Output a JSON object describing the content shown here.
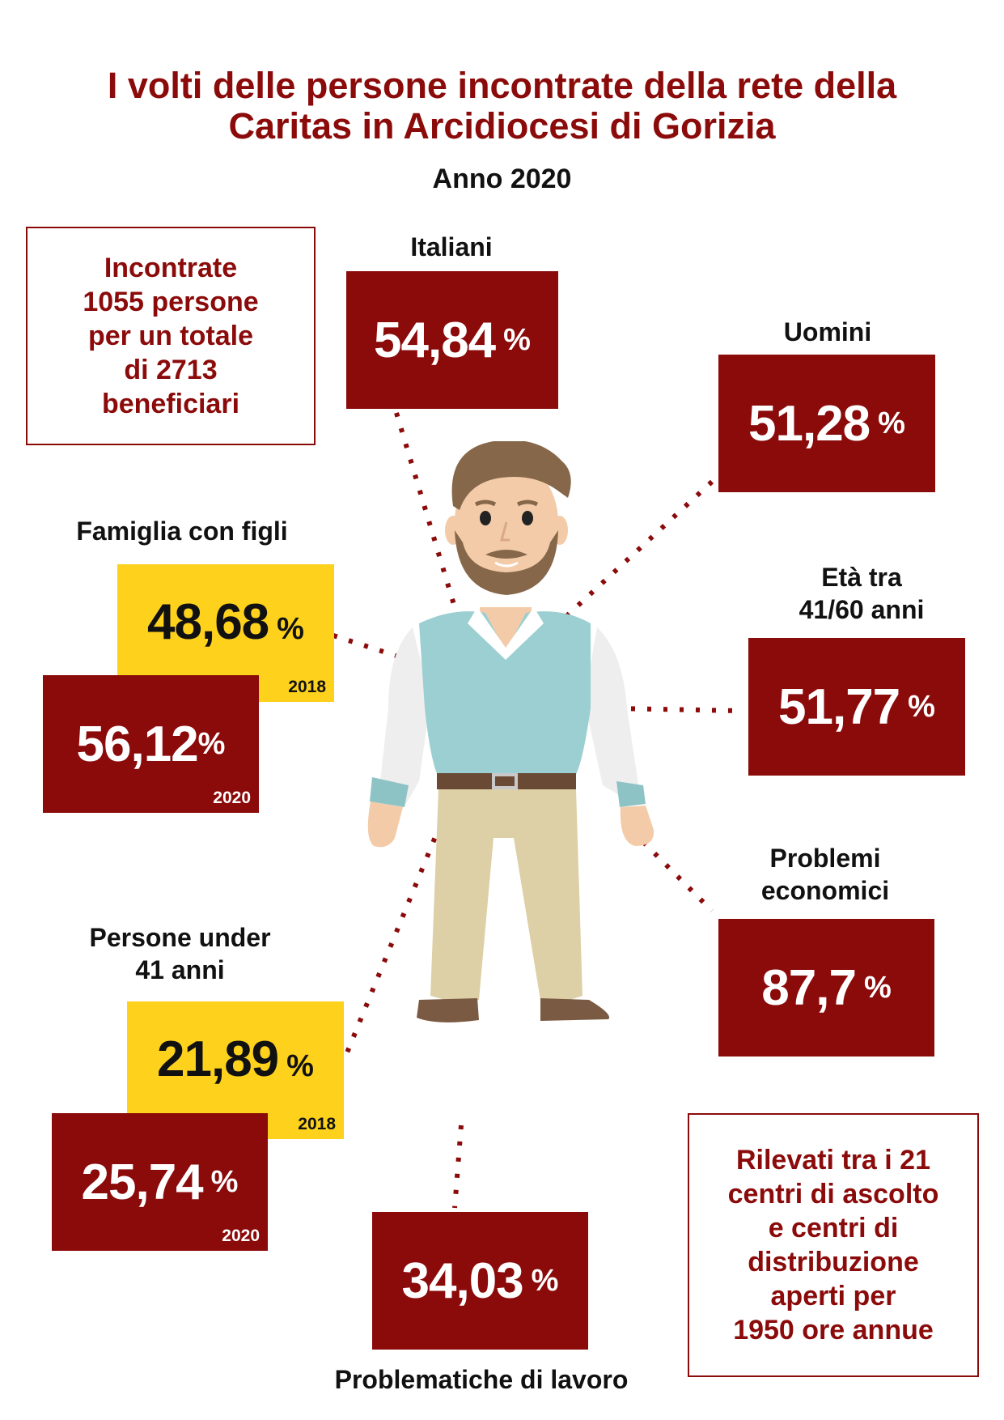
{
  "title_line1": "I volti delle persone incontrate della rete della",
  "title_line2": "Caritas in Arcidiocesi di Gorizia",
  "subtitle": "Anno 2020",
  "intro_box": [
    "Incontrate",
    "1055 persone",
    "per un totale",
    "di 2713",
    "beneficiari"
  ],
  "footer_box": [
    "Rilevati tra i 21",
    "centri di ascolto",
    "e centri di",
    "distribuzione",
    "aperti per",
    "1950 ore annue"
  ],
  "stats": {
    "italiani": {
      "label": "Italiani",
      "value": "54,84",
      "unit": "%"
    },
    "uomini": {
      "label": "Uomini",
      "value": "51,28",
      "unit": "%"
    },
    "eta": {
      "label_line1": "Età tra",
      "label_line2": "41/60 anni",
      "value": "51,77",
      "unit": "%"
    },
    "problemi": {
      "label_line1": "Problemi",
      "label_line2": "economici",
      "value": "87,7",
      "unit": "%"
    },
    "lavoro": {
      "label": "Problematiche di lavoro",
      "value": "34,03",
      "unit": "%"
    },
    "famiglia": {
      "label": "Famiglia con figli",
      "value_2018": "48,68",
      "year_2018": "2018",
      "value_2020": "56,12",
      "year_2020": "2020",
      "unit": "%"
    },
    "under41": {
      "label_line1": "Persone under",
      "label_line2": "41 anni",
      "value_2018": "21,89",
      "year_2018": "2018",
      "value_2020": "25,74",
      "year_2020": "2020",
      "unit": "%"
    }
  },
  "colors": {
    "dark_red": "#8b0a0a",
    "yellow": "#fdd11c",
    "title_red": "#8b0b0b"
  },
  "illustration": "man-figure-illustration"
}
